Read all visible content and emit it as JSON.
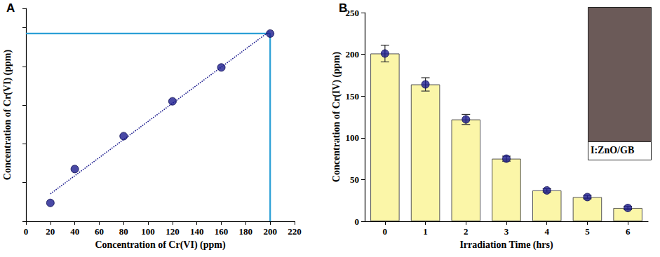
{
  "chart_data": [
    {
      "panel": "A",
      "type": "scatter",
      "x_label": "Concentration of Cr(VI) (ppm)",
      "y_label": "Concentration of Cr(VI) (ppm)",
      "x": [
        20,
        40,
        80,
        120,
        160,
        200
      ],
      "values": [
        19,
        54,
        88,
        124,
        159,
        194
      ],
      "color": "#1c1c8f",
      "marker": "circle",
      "line_style": "dotted",
      "xlim": [
        0,
        220
      ],
      "xticks": [
        0,
        20,
        40,
        60,
        80,
        100,
        120,
        140,
        160,
        180,
        200,
        220
      ],
      "ylim": [
        0,
        220
      ],
      "yticks": [
        0,
        40,
        80,
        120,
        160,
        200
      ],
      "tick_labels": "x",
      "grid": false
    },
    {
      "panel": "B",
      "type": "bar",
      "x_label": "Irradiation Time (hrs)",
      "y_label": "Concentration of Cr(IV) (ppm)",
      "categories": [
        "0",
        "1",
        "2",
        "3",
        "4",
        "5",
        "6"
      ],
      "values": [
        201,
        164,
        122,
        75,
        37,
        29,
        16
      ],
      "errors": [
        10,
        8,
        6,
        3,
        2,
        2,
        2
      ],
      "color": "#fbf6a8",
      "marker": "circle",
      "ylim": [
        0,
        250
      ],
      "yticks": [
        0,
        50,
        100,
        150,
        200,
        250
      ],
      "grid": false,
      "annotations": [
        "I:ZnO/GB"
      ]
    }
  ]
}
